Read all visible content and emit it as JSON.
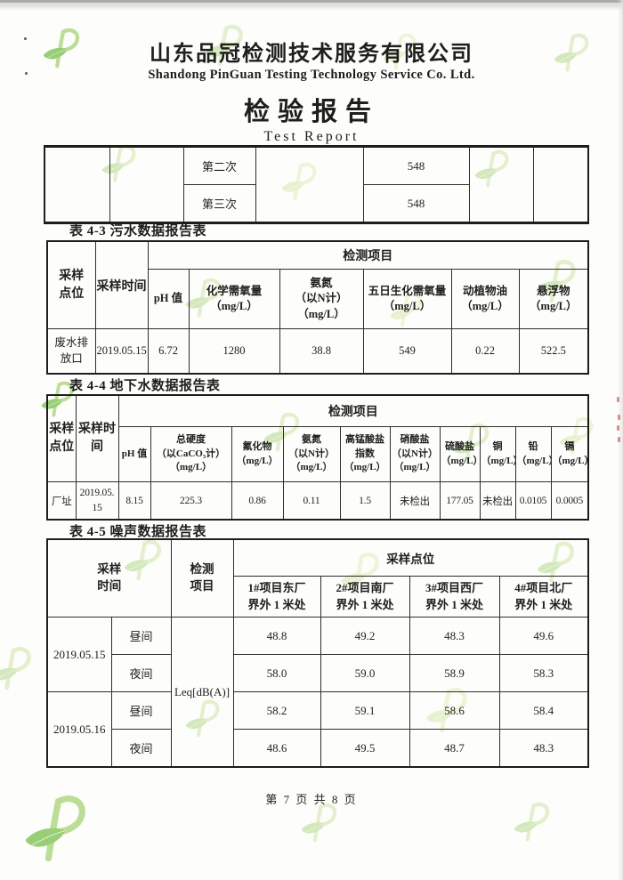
{
  "branding": {
    "logo_icon": "pinguan-leaf-logo",
    "watermark_main_color": "#cfe4a8",
    "watermark_leaf_color": "#9ccf74"
  },
  "header": {
    "company_cn": "山东品冠检测技术服务有限公司",
    "company_en": "Shandong PinGuan Testing Technology Service Co. Ltd.",
    "report_title_cn": "检验报告",
    "report_title_en": "Test Report"
  },
  "carryover_table": {
    "rows": [
      {
        "label": "第二次",
        "value": "548"
      },
      {
        "label": "第三次",
        "value": "548"
      }
    ]
  },
  "wastewater_table": {
    "caption": "表 4-3 污水数据报告表",
    "header": {
      "sampling_point": "采样\n点位",
      "sampling_time": "采样时间",
      "test_items": "检测项目",
      "params": [
        "pH 值",
        "化学需氧量\n（mg/L）",
        "氨氮\n（以N计）\n（mg/L）",
        "五日生化需氧量\n（mg/L）",
        "动植物油\n（mg/L）",
        "悬浮物\n（mg/L）"
      ]
    },
    "row": {
      "point": "废水排\n放口",
      "time": "2019.05.15",
      "values": [
        "6.72",
        "1280",
        "38.8",
        "549",
        "0.22",
        "522.5"
      ]
    }
  },
  "groundwater_table": {
    "caption": "表 4-4 地下水数据报告表",
    "header": {
      "sampling_point": "采样\n点位",
      "sampling_time": "采样时\n间",
      "test_items": "检测项目",
      "params": [
        "pH 值",
        "总硬度\n（以CaCO₃计）\n（mg/L）",
        "氟化物\n（mg/L）",
        "氨氮\n（以N计）\n（mg/L）",
        "高锰酸盐\n指数\n（mg/L）",
        "硝酸盐\n（以N计）\n（mg/L）",
        "硫酸盐\n（mg/L）",
        "铜\n（mg/L）",
        "铅\n（mg/L）",
        "镉\n（mg/L）"
      ]
    },
    "row": {
      "point": "厂址",
      "time": "2019.05.\n15",
      "values": [
        "8.15",
        "225.3",
        "0.86",
        "0.11",
        "1.5",
        "未检出",
        "177.05",
        "未检出",
        "0.0105",
        "0.0005"
      ]
    }
  },
  "noise_table": {
    "caption": "表 4-5 噪声数据报告表",
    "header": {
      "sampling_time": "采样\n时间",
      "test_item": "检测\n项目",
      "sampling_points": "采样点位",
      "points": [
        "1#项目东厂\n界外 1 米处",
        "2#项目南厂\n界外 1 米处",
        "3#项目西厂\n界外 1 米处",
        "4#项目北厂\n界外 1 米处"
      ]
    },
    "measure_label": "Leq[dB(A)]",
    "groups": [
      {
        "date": "2019.05.15",
        "rows": [
          {
            "period": "昼间",
            "values": [
              "48.8",
              "49.2",
              "48.3",
              "49.6"
            ]
          },
          {
            "period": "夜间",
            "values": [
              "58.0",
              "59.0",
              "58.9",
              "58.3"
            ]
          }
        ]
      },
      {
        "date": "2019.05.16",
        "rows": [
          {
            "period": "昼间",
            "values": [
              "58.2",
              "59.1",
              "58.6",
              "58.4"
            ]
          },
          {
            "period": "夜间",
            "values": [
              "48.6",
              "49.5",
              "48.7",
              "48.3"
            ]
          }
        ]
      }
    ]
  },
  "footer": {
    "page_info": "第 7 页 共 8 页"
  }
}
